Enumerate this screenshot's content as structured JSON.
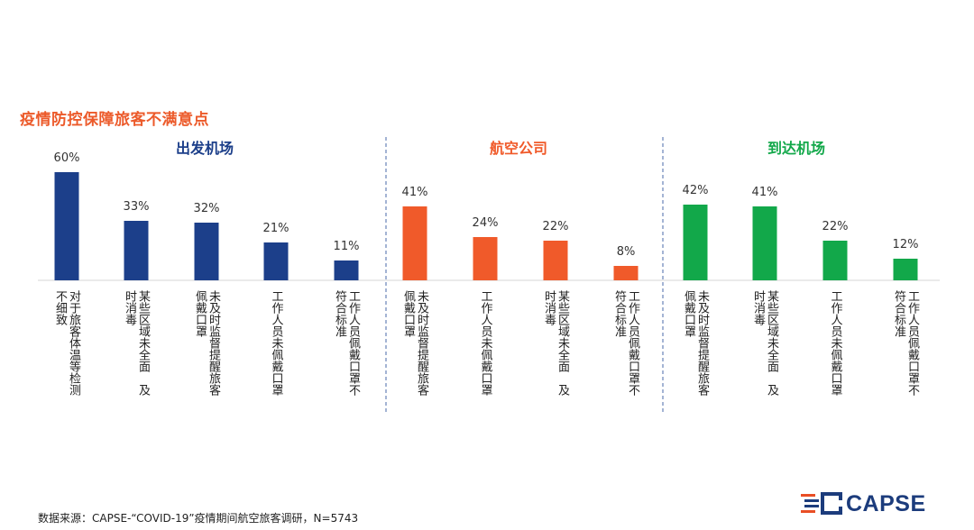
{
  "title": "疫情防控保障旅客不满意点",
  "source": "数据来源：CAPSE-“COVID-19”疫情期间航空旅客调研，N=5743",
  "logo_text": "CAPSE",
  "colors": {
    "title": "#ec5a2a",
    "source_text": "#222222",
    "logo": "#1c3c7c",
    "logo_accent": "#e94e25"
  },
  "chart_data": [
    {
      "type": "bar",
      "group_title": "出发机场",
      "color": "#1c3f8a",
      "categories": [
        [
          "对于旅客体温等检测",
          "不细致"
        ],
        [
          "某些区域未全面　及",
          "时消毒"
        ],
        [
          "未及时监督提醒旅客",
          "佩戴口罩"
        ],
        [
          "工作人员未佩戴口罩"
        ],
        [
          "工作人员佩戴口罩不",
          "符合标准"
        ]
      ],
      "values": [
        60,
        33,
        32,
        21,
        11
      ],
      "labels": [
        "60%",
        "33%",
        "32%",
        "21%",
        "11%"
      ]
    },
    {
      "type": "bar",
      "group_title": "航空公司",
      "color": "#f05a2a",
      "categories": [
        [
          "未及时监督提醒旅客",
          "佩戴口罩"
        ],
        [
          "工作人员未佩戴口罩"
        ],
        [
          "某些区域未全面　及",
          "时消毒"
        ],
        [
          "工作人员佩戴口罩不",
          "符合标准"
        ]
      ],
      "values": [
        41,
        24,
        22,
        8
      ],
      "labels": [
        "41%",
        "24%",
        "22%",
        "8%"
      ]
    },
    {
      "type": "bar",
      "group_title": "到达机场",
      "color": "#12a84a",
      "categories": [
        [
          "未及时监督提醒旅客",
          "佩戴口罩"
        ],
        [
          "某些区域未全面　及",
          "时消毒"
        ],
        [
          "工作人员未佩戴口罩"
        ],
        [
          "工作人员佩戴口罩不",
          "符合标准"
        ]
      ],
      "values": [
        42,
        41,
        22,
        12
      ],
      "labels": [
        "42%",
        "41%",
        "22%",
        "12%"
      ]
    }
  ]
}
